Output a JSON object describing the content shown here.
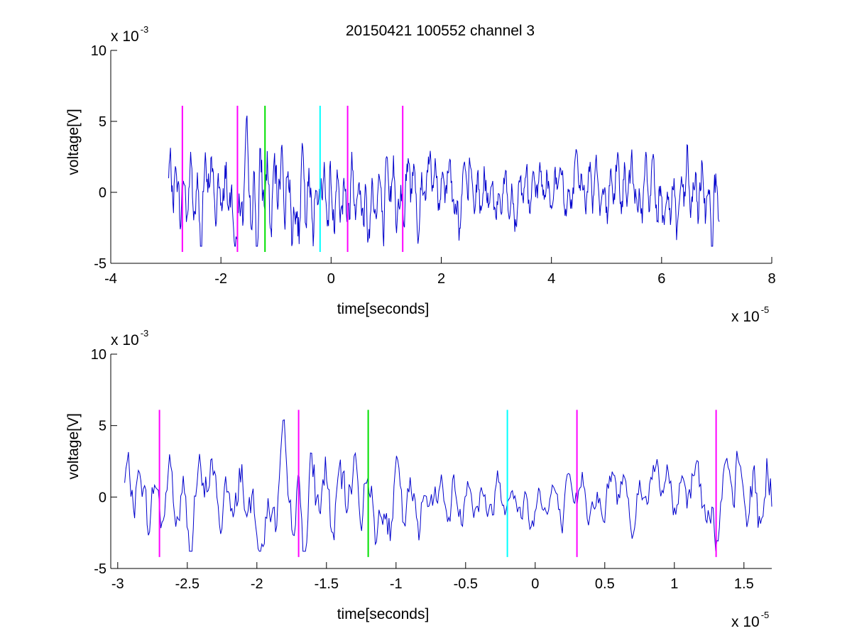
{
  "figure_title": "20150421 100552 channel 3",
  "colors": {
    "trace": "#0000cc",
    "magenta": "#ff00ff",
    "green": "#00e000",
    "cyan": "#00ffff",
    "axis": "#000000"
  },
  "chart_data": [
    {
      "type": "line",
      "panel": "top",
      "title": "20150421 100552 channel 3",
      "xlabel": "time[seconds]",
      "ylabel": "voltage[V]",
      "x_exponent_label": "x 10",
      "x_exponent": "-5",
      "y_exponent_label": "x 10",
      "y_exponent": "-3",
      "xlim": [
        -4,
        8
      ],
      "ylim": [
        -5,
        10
      ],
      "xticks": [
        -4,
        -2,
        0,
        2,
        4,
        6,
        8
      ],
      "xtick_labels": [
        "-4",
        "-2",
        "0",
        "2",
        "4",
        "6",
        "8"
      ],
      "yticks": [
        -5,
        0,
        5,
        10
      ],
      "ytick_labels": [
        "-5",
        "0",
        "5",
        "10"
      ],
      "grid": false,
      "series": [
        {
          "color": "#0000cc",
          "x_range": [
            -2.95,
            7.05
          ],
          "points": 900,
          "style": "noisy-signal"
        }
      ],
      "markers": [
        {
          "x": -2.7,
          "y_range": [
            -4.2,
            6.1
          ],
          "color": "magenta"
        },
        {
          "x": -1.7,
          "y_range": [
            -4.2,
            6.1
          ],
          "color": "magenta"
        },
        {
          "x": -1.2,
          "y_range": [
            -4.2,
            6.1
          ],
          "color": "green"
        },
        {
          "x": -0.2,
          "y_range": [
            -4.2,
            6.1
          ],
          "color": "cyan"
        },
        {
          "x": 0.3,
          "y_range": [
            -4.2,
            6.1
          ],
          "color": "magenta"
        },
        {
          "x": 1.3,
          "y_range": [
            -4.2,
            6.1
          ],
          "color": "magenta"
        }
      ]
    },
    {
      "type": "line",
      "panel": "bottom",
      "xlabel": "time[seconds]",
      "ylabel": "voltage[V]",
      "x_exponent_label": "x 10",
      "x_exponent": "-5",
      "y_exponent_label": "x 10",
      "y_exponent": "-3",
      "xlim": [
        -3.05,
        1.7
      ],
      "ylim": [
        -5,
        10
      ],
      "xticks": [
        -3,
        -2.5,
        -2,
        -1.5,
        -1,
        -0.5,
        0,
        0.5,
        1,
        1.5
      ],
      "xtick_labels": [
        "-3",
        "-2.5",
        "-2",
        "-1.5",
        "-1",
        "-0.5",
        "0",
        "0.5",
        "1",
        "1.5"
      ],
      "yticks": [
        -5,
        0,
        5,
        10
      ],
      "ytick_labels": [
        "-5",
        "0",
        "5",
        "10"
      ],
      "grid": false,
      "series": [
        {
          "color": "#0000cc",
          "x_range": [
            -2.95,
            1.7
          ],
          "points": 520,
          "style": "noisy-signal"
        }
      ],
      "markers": [
        {
          "x": -2.7,
          "y_range": [
            -4.2,
            6.1
          ],
          "color": "magenta"
        },
        {
          "x": -1.7,
          "y_range": [
            -4.2,
            6.1
          ],
          "color": "magenta"
        },
        {
          "x": -1.2,
          "y_range": [
            -4.2,
            6.1
          ],
          "color": "green"
        },
        {
          "x": -0.2,
          "y_range": [
            -4.2,
            6.1
          ],
          "color": "cyan"
        },
        {
          "x": 0.3,
          "y_range": [
            -4.2,
            6.1
          ],
          "color": "magenta"
        },
        {
          "x": 1.3,
          "y_range": [
            -4.2,
            6.1
          ],
          "color": "magenta"
        }
      ]
    }
  ]
}
